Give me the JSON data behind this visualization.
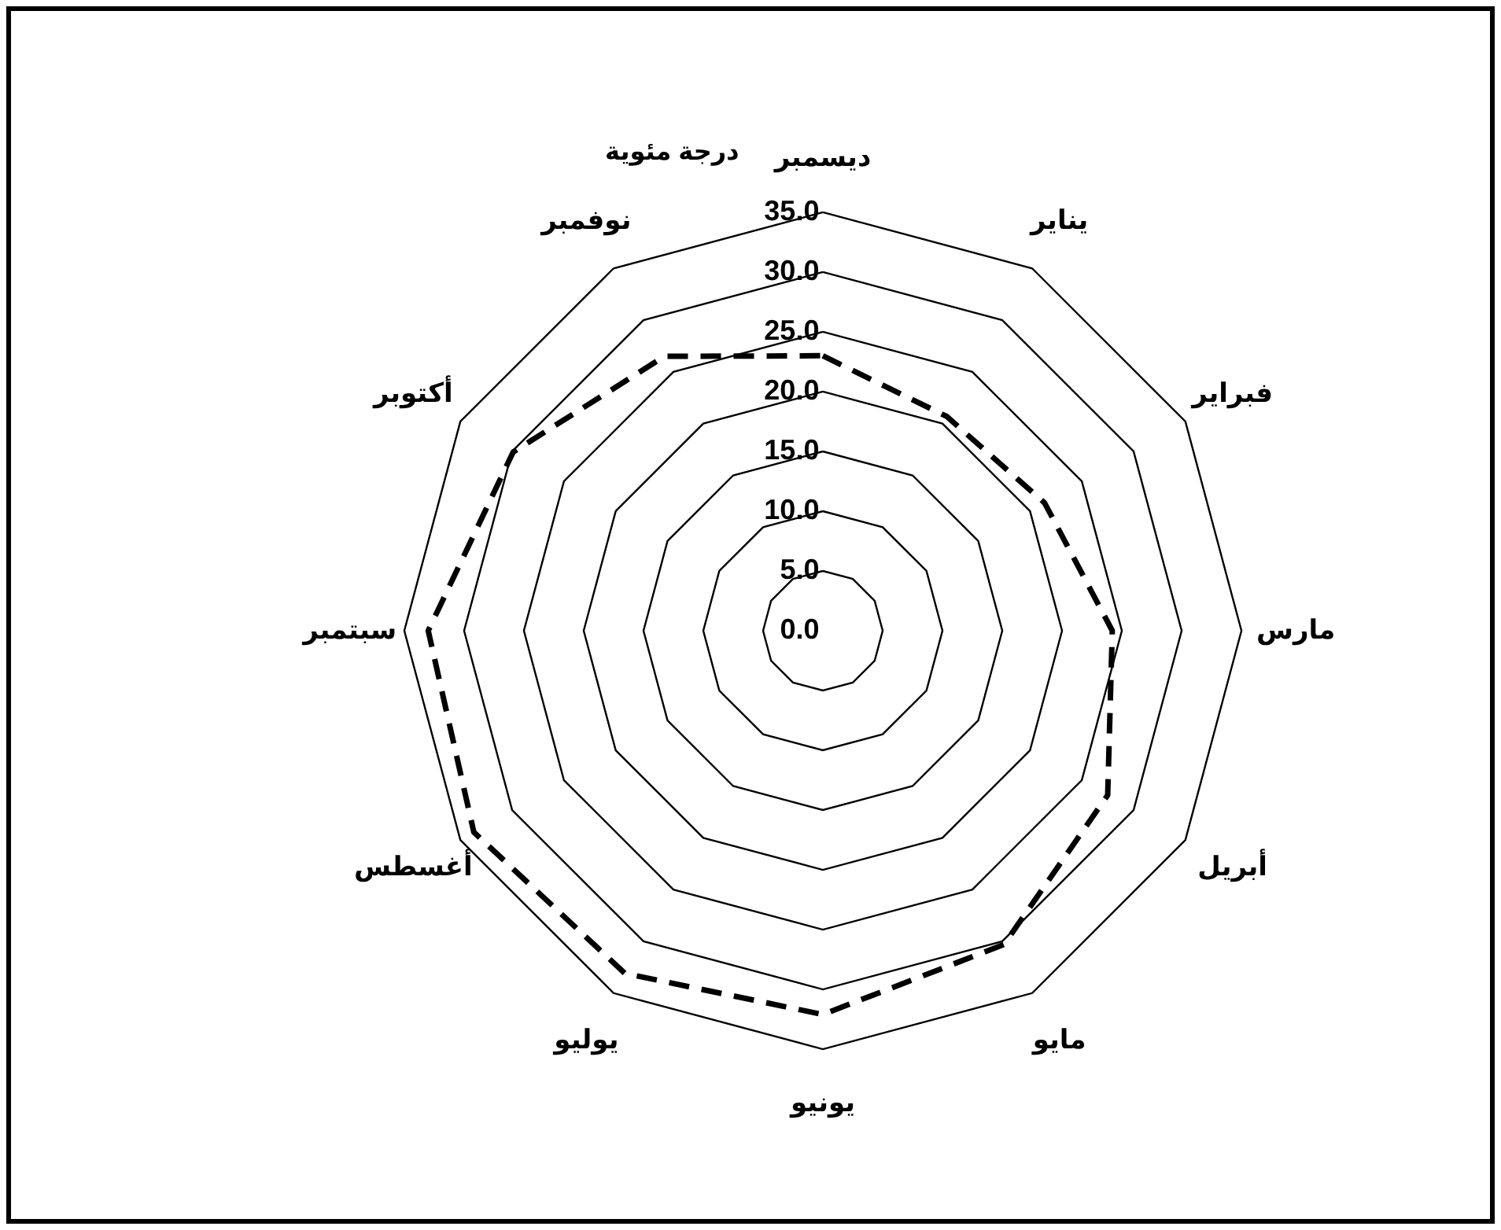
{
  "chart_data": {
    "type": "radar",
    "ylabel": "درجة مئوية",
    "categories": [
      "ديسمبر",
      "يناير",
      "فبراير",
      "مارس",
      "أبريل",
      "مايو",
      "يونيو",
      "يوليو",
      "أغسطس",
      "سبتمبر",
      "أكتوبر",
      "نوفمبر"
    ],
    "series": [
      {
        "color": "#000000",
        "values": [
          23.0,
          20.7,
          21.4,
          24.2,
          27.5,
          30.3,
          32.1,
          33.1,
          33.7,
          33.0,
          29.9,
          26.5
        ]
      }
    ],
    "ylim": [
      0,
      35
    ],
    "yticks": [
      {
        "value": 0,
        "label": "0.0"
      },
      {
        "value": 5,
        "label": "5.0"
      },
      {
        "value": 10,
        "label": "10.0"
      },
      {
        "value": 15,
        "label": "15.0"
      },
      {
        "value": 20,
        "label": "20.0"
      },
      {
        "value": 25,
        "label": "25.0"
      },
      {
        "value": 30,
        "label": "30.0"
      },
      {
        "value": 35,
        "label": "35.0"
      }
    ],
    "grid": true,
    "line_style": "dashed",
    "marker": "none"
  }
}
